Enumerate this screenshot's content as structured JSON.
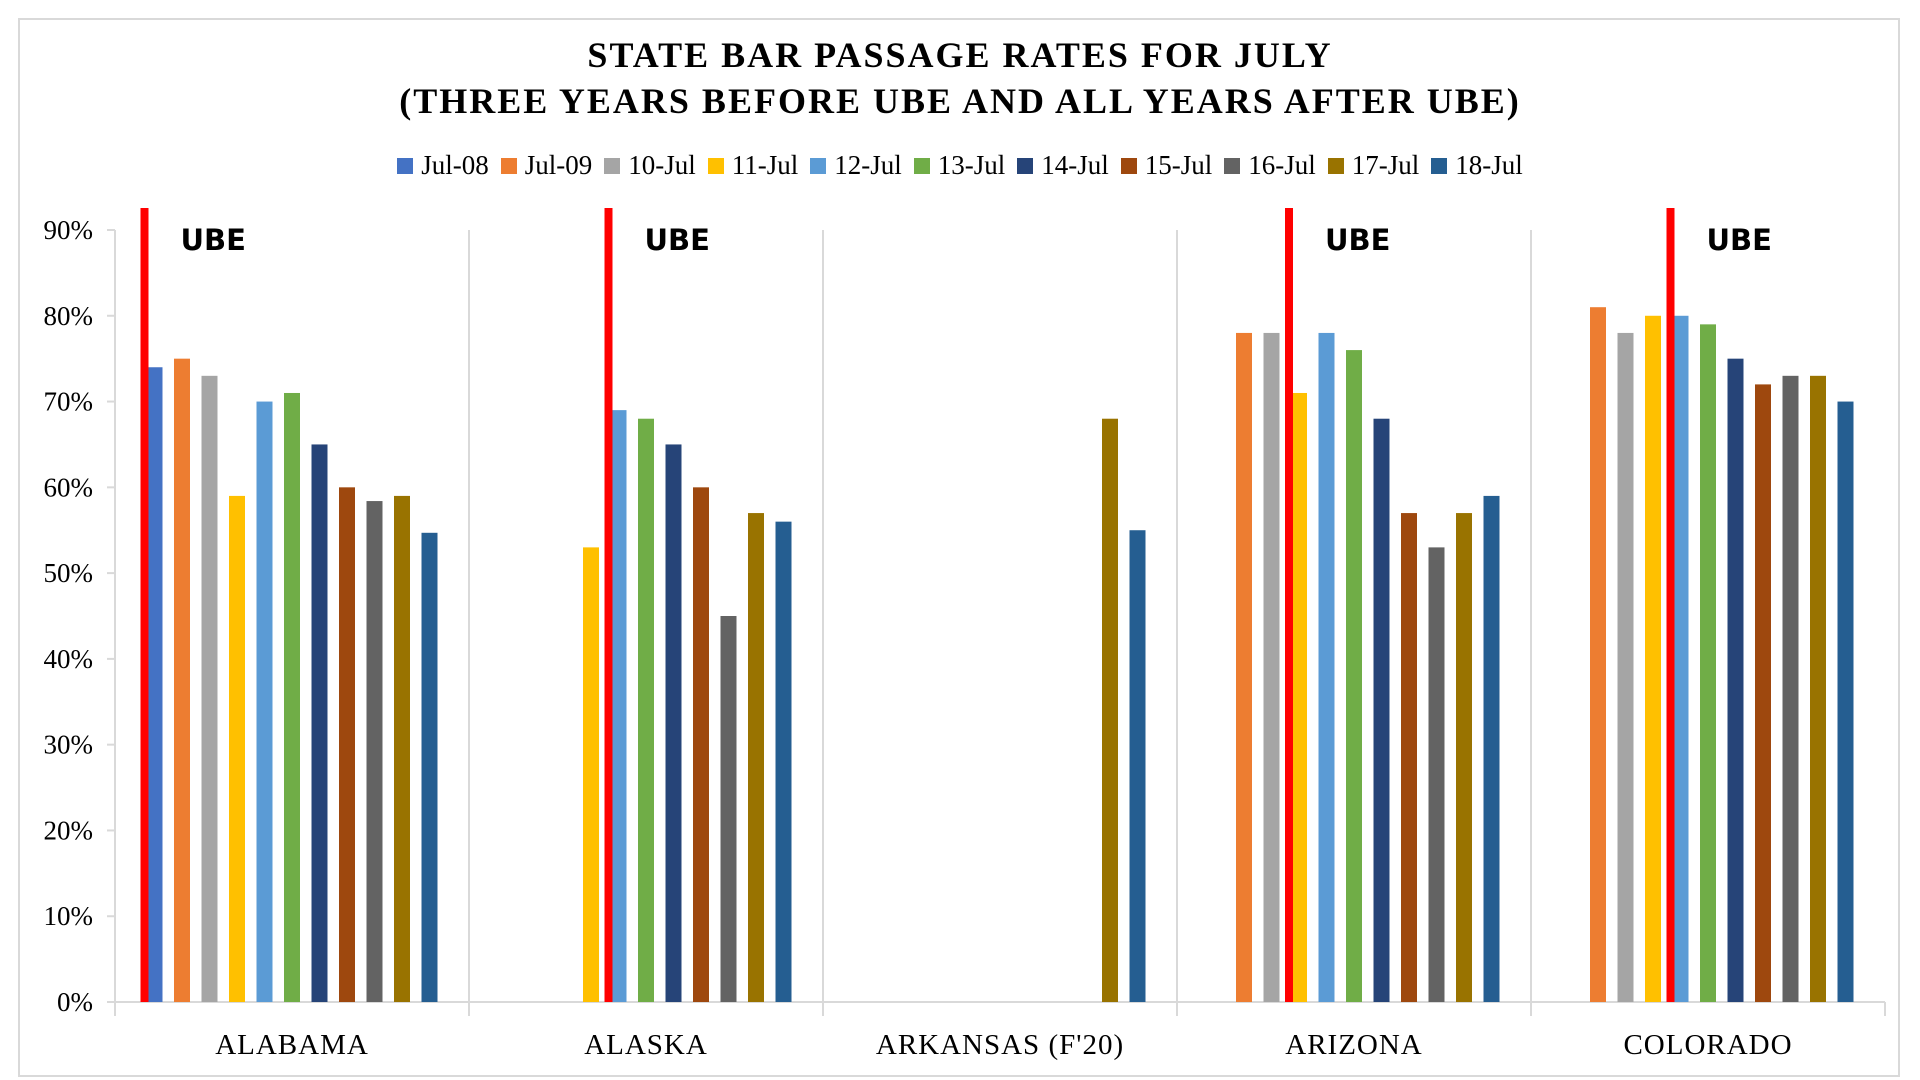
{
  "chart_data": {
    "type": "bar",
    "title": "STATE BAR PASSAGE RATES FOR JULY",
    "subtitle": "(THREE YEARS BEFORE UBE AND ALL YEARS AFTER UBE)",
    "xlabel": "",
    "ylabel": "",
    "ylim": [
      0,
      90
    ],
    "yticks": [
      "0%",
      "10%",
      "20%",
      "30%",
      "40%",
      "50%",
      "60%",
      "70%",
      "80%",
      "90%"
    ],
    "ytick_values": [
      0,
      10,
      20,
      30,
      40,
      50,
      60,
      70,
      80,
      90
    ],
    "grid": false,
    "legend_position": "top",
    "categories": [
      "ALABAMA",
      "ALASKA",
      "ARKANSAS (F'20)",
      "ARIZONA",
      "COLORADO"
    ],
    "series": [
      {
        "name": "Jul-08",
        "color": "#4472c4",
        "values": [
          74,
          null,
          null,
          null,
          null
        ]
      },
      {
        "name": "Jul-09",
        "color": "#ed7d31",
        "values": [
          75,
          null,
          null,
          78,
          81
        ]
      },
      {
        "name": "10-Jul",
        "color": "#a5a5a5",
        "values": [
          73,
          null,
          null,
          78,
          78
        ]
      },
      {
        "name": "11-Jul",
        "color": "#ffc000",
        "values": [
          59,
          53,
          null,
          71,
          80
        ]
      },
      {
        "name": "12-Jul",
        "color": "#5b9bd5",
        "values": [
          70,
          69,
          null,
          78,
          80
        ]
      },
      {
        "name": "13-Jul",
        "color": "#70ad47",
        "values": [
          71,
          68,
          null,
          76,
          79
        ]
      },
      {
        "name": "14-Jul",
        "color": "#264478",
        "values": [
          65,
          65,
          null,
          68,
          75
        ]
      },
      {
        "name": "15-Jul",
        "color": "#9e480e",
        "values": [
          60,
          60,
          null,
          57,
          72
        ]
      },
      {
        "name": "16-Jul",
        "color": "#636363",
        "values": [
          58.4,
          45,
          null,
          53,
          73
        ]
      },
      {
        "name": "17-Jul",
        "color": "#997300",
        "values": [
          59,
          57,
          68,
          57,
          73
        ]
      },
      {
        "name": "18-Jul",
        "color": "#255e91",
        "values": [
          54.7,
          56,
          55,
          59,
          70
        ]
      }
    ],
    "annotations": [
      {
        "category": "ALABAMA",
        "label": "UBE",
        "line_before_series": "Jul-08",
        "color": "#ff0000"
      },
      {
        "category": "ALASKA",
        "label": "UBE",
        "line_before_series": "12-Jul",
        "color": "#ff0000"
      },
      {
        "category": "ARIZONA",
        "label": "UBE",
        "line_before_series": "11-Jul",
        "color": "#ff0000"
      },
      {
        "category": "COLORADO",
        "label": "UBE",
        "line_before_series": "12-Jul",
        "color": "#ff0000"
      }
    ]
  }
}
